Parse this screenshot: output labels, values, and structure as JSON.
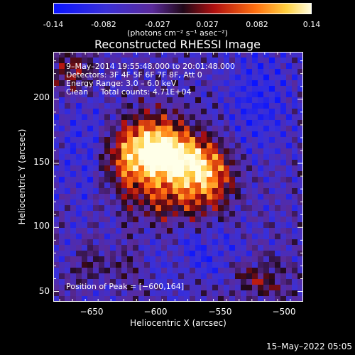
{
  "colorbar": {
    "ticks": [
      "-0.14",
      "-0.082",
      "-0.027",
      "0.027",
      "0.082",
      "0.14"
    ],
    "label": "(photons cm⁻² s⁻¹ asec⁻²)"
  },
  "chart_data": {
    "type": "heatmap",
    "title": "Reconstructed RHESSI Image",
    "xlabel": "Heliocentric X (arcsec)",
    "ylabel": "Heliocentric Y (arcsec)",
    "xlim": [
      -680,
      -485
    ],
    "ylim": [
      42,
      237
    ],
    "x_ticks": [
      -650,
      -600,
      -550,
      -500
    ],
    "y_ticks": [
      50,
      100,
      150,
      200
    ],
    "x_tick_labels": [
      "−650",
      "−600",
      "−550",
      "−500"
    ],
    "y_tick_labels": [
      "50",
      "100",
      "150",
      "200"
    ],
    "color_range": [
      -0.14,
      0.14
    ],
    "peak_position": [
      -600,
      164
    ],
    "annotations": {
      "time": "9–May–2014 19:55:48.000 to 20:01:48.000",
      "detectors": "Detectors: 3F 4F 5F 6F 7F 8F, Att 0",
      "energy": "Energy Range: 3.0 – 6.0 keV",
      "clean": "Clean     Total counts: 4.71E+04",
      "peak": "Position of Peak = [−600,164]"
    }
  },
  "footer": {
    "timestamp": "15–May–2022 05:05"
  }
}
